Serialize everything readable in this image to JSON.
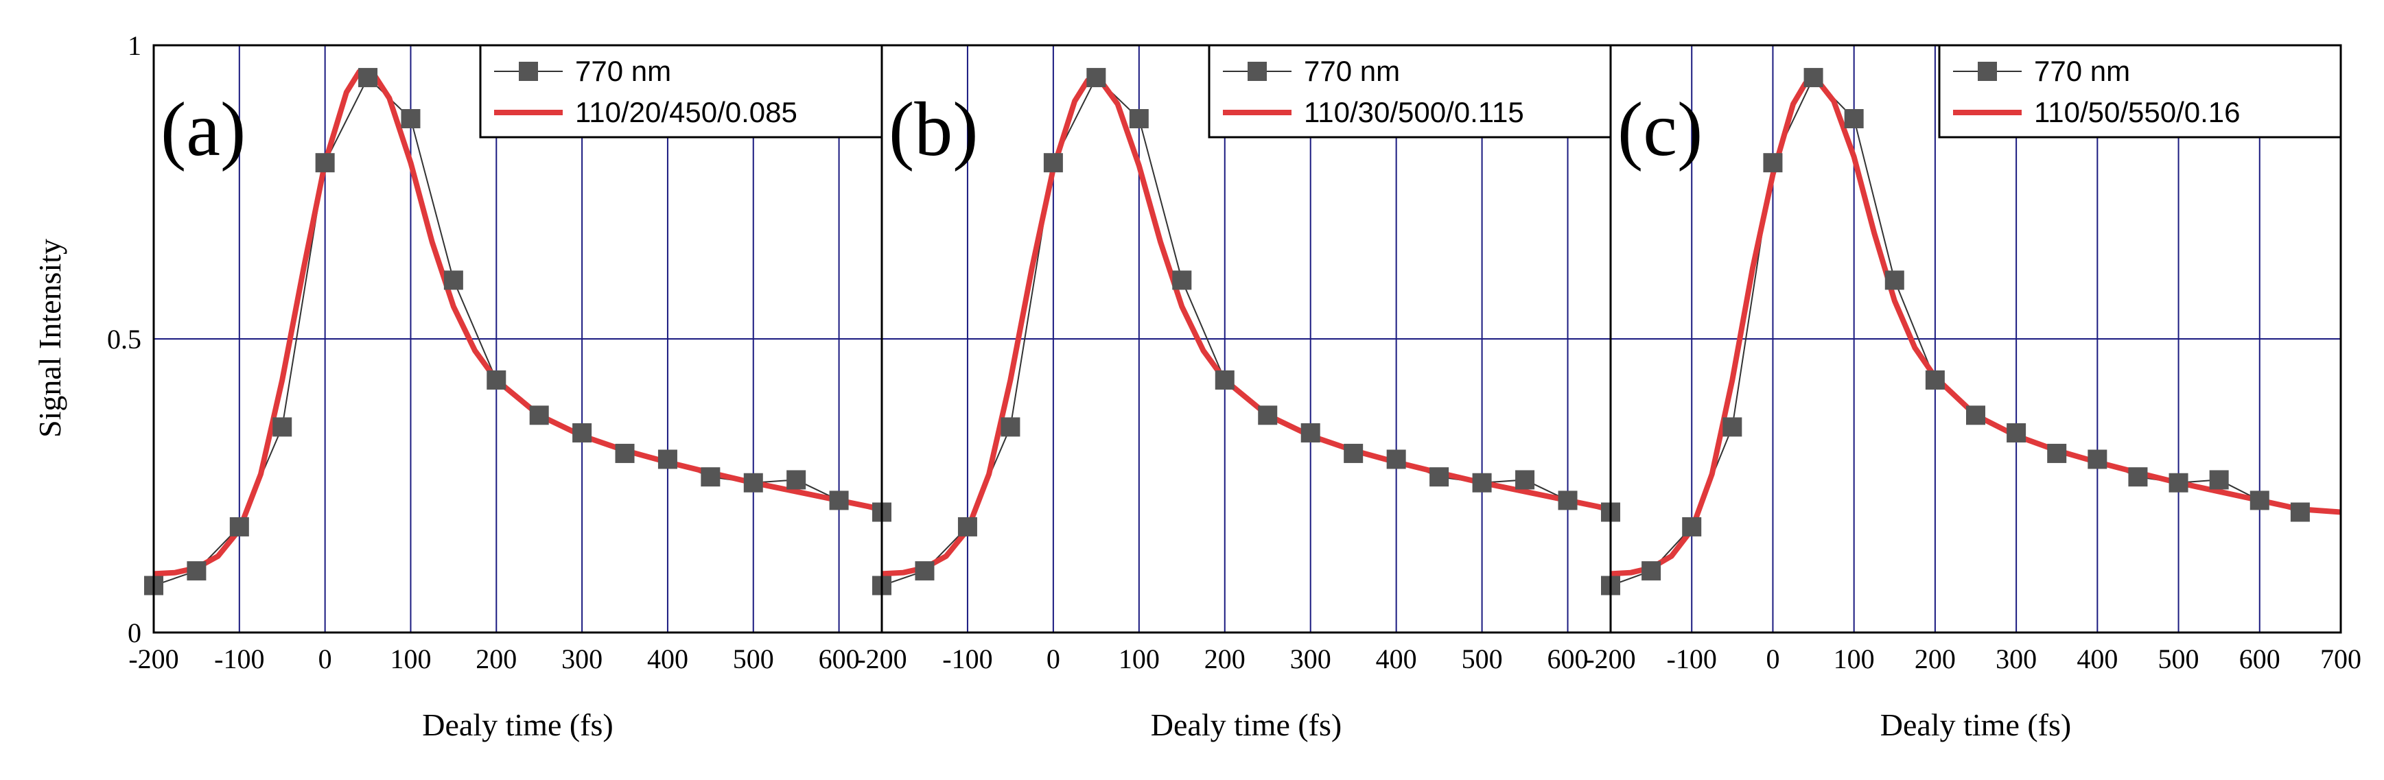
{
  "figure": {
    "ylabel": "Signal Intensity",
    "y_ticks": [
      "0",
      "0.5",
      "1"
    ]
  },
  "colors": {
    "data": "#555555",
    "fit": "#e0393b",
    "grid": "#1a1a80",
    "axis": "#000000"
  },
  "chart_data": [
    {
      "type": "line",
      "panel_label": "(a)",
      "xlabel": "Dealy time (fs)",
      "ylabel": "Signal Intensity",
      "xlim": [
        -200,
        650
      ],
      "ylim": [
        0,
        1
      ],
      "x_ticks": [
        "-200",
        "-100",
        "0",
        "100",
        "200",
        "300",
        "400",
        "500",
        "600"
      ],
      "grid": true,
      "legend_position": "top-right",
      "series": [
        {
          "name": "770 nm",
          "style": "line+square-markers",
          "x": [
            -200,
            -150,
            -100,
            -50,
            0,
            50,
            100,
            150,
            200,
            250,
            300,
            350,
            400,
            450,
            500,
            550,
            600,
            650
          ],
          "y": [
            0.08,
            0.105,
            0.18,
            0.35,
            0.8,
            0.945,
            0.875,
            0.6,
            0.43,
            0.37,
            0.34,
            0.305,
            0.295,
            0.265,
            0.255,
            0.26,
            0.225,
            0.205
          ]
        },
        {
          "name": "110/20/450/0.085",
          "style": "line",
          "x": [
            -200,
            -175,
            -150,
            -125,
            -100,
            -75,
            -50,
            -25,
            0,
            25,
            40,
            55,
            75,
            100,
            125,
            150,
            175,
            200,
            250,
            300,
            350,
            400,
            450,
            500,
            550,
            600,
            650
          ],
          "y": [
            0.1,
            0.102,
            0.11,
            0.13,
            0.175,
            0.27,
            0.43,
            0.62,
            0.8,
            0.92,
            0.955,
            0.955,
            0.91,
            0.8,
            0.665,
            0.555,
            0.48,
            0.43,
            0.37,
            0.335,
            0.31,
            0.29,
            0.272,
            0.255,
            0.24,
            0.225,
            0.21
          ]
        }
      ]
    },
    {
      "type": "line",
      "panel_label": "(b)",
      "xlabel": "Dealy time (fs)",
      "ylabel": "Signal Intensity",
      "xlim": [
        -200,
        650
      ],
      "ylim": [
        0,
        1
      ],
      "x_ticks": [
        "-200",
        "-100",
        "0",
        "100",
        "200",
        "300",
        "400",
        "500",
        "600"
      ],
      "grid": true,
      "legend_position": "top-right",
      "series": [
        {
          "name": "770 nm",
          "style": "line+square-markers",
          "x": [
            -200,
            -150,
            -100,
            -50,
            0,
            50,
            100,
            150,
            200,
            250,
            300,
            350,
            400,
            450,
            500,
            550,
            600,
            650
          ],
          "y": [
            0.08,
            0.105,
            0.18,
            0.35,
            0.8,
            0.945,
            0.875,
            0.6,
            0.43,
            0.37,
            0.34,
            0.305,
            0.295,
            0.265,
            0.255,
            0.26,
            0.225,
            0.205
          ]
        },
        {
          "name": "110/30/500/0.115",
          "style": "line",
          "x": [
            -200,
            -175,
            -150,
            -125,
            -100,
            -75,
            -50,
            -25,
            0,
            25,
            40,
            55,
            75,
            100,
            125,
            150,
            175,
            200,
            250,
            300,
            350,
            400,
            450,
            500,
            550,
            600,
            650
          ],
          "y": [
            0.1,
            0.102,
            0.11,
            0.13,
            0.175,
            0.27,
            0.43,
            0.62,
            0.79,
            0.905,
            0.94,
            0.94,
            0.9,
            0.795,
            0.665,
            0.555,
            0.48,
            0.43,
            0.37,
            0.335,
            0.31,
            0.29,
            0.272,
            0.255,
            0.24,
            0.225,
            0.21
          ]
        }
      ]
    },
    {
      "type": "line",
      "panel_label": "(c)",
      "xlabel": "Dealy time (fs)",
      "ylabel": "Signal Intensity",
      "xlim": [
        -200,
        700
      ],
      "ylim": [
        0,
        1
      ],
      "x_ticks": [
        "-200",
        "-100",
        "0",
        "100",
        "200",
        "300",
        "400",
        "500",
        "600",
        "700"
      ],
      "grid": true,
      "legend_position": "top-right",
      "series": [
        {
          "name": "770 nm",
          "style": "line+square-markers",
          "x": [
            -200,
            -150,
            -100,
            -50,
            0,
            50,
            100,
            150,
            200,
            250,
            300,
            350,
            400,
            450,
            500,
            550,
            600,
            650
          ],
          "y": [
            0.08,
            0.105,
            0.18,
            0.35,
            0.8,
            0.945,
            0.875,
            0.6,
            0.43,
            0.37,
            0.34,
            0.305,
            0.295,
            0.265,
            0.255,
            0.26,
            0.225,
            0.205
          ]
        },
        {
          "name": "110/50/550/0.16",
          "style": "line",
          "x": [
            -200,
            -175,
            -150,
            -125,
            -100,
            -75,
            -50,
            -25,
            0,
            25,
            40,
            55,
            75,
            100,
            125,
            150,
            175,
            200,
            250,
            300,
            350,
            400,
            450,
            500,
            550,
            600,
            650,
            700
          ],
          "y": [
            0.1,
            0.102,
            0.11,
            0.13,
            0.175,
            0.27,
            0.43,
            0.62,
            0.78,
            0.9,
            0.935,
            0.94,
            0.905,
            0.81,
            0.68,
            0.565,
            0.485,
            0.435,
            0.37,
            0.335,
            0.31,
            0.29,
            0.272,
            0.255,
            0.24,
            0.225,
            0.21,
            0.205
          ]
        }
      ]
    }
  ]
}
